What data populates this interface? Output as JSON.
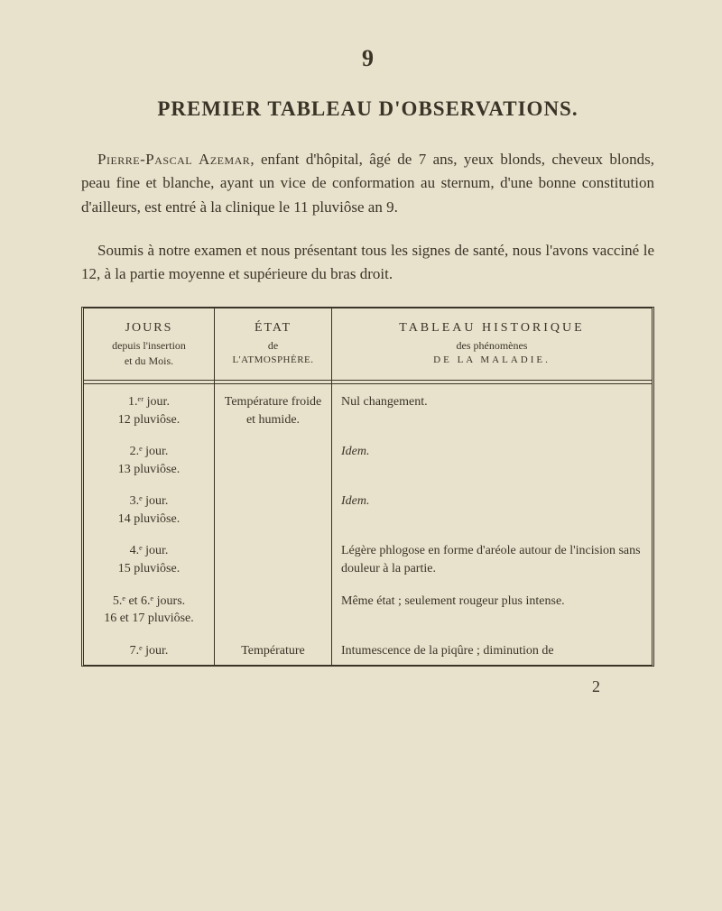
{
  "page_number": "9",
  "title": "PREMIER TABLEAU D'OBSERVATIONS.",
  "paragraph1_name": "Pierre-Pascal Azemar",
  "paragraph1_rest": ", enfant d'hôpital, âgé de 7 ans, yeux blonds, cheveux blonds, peau fine et blanche, ayant un vice de conformation au sternum, d'une bonne constitution d'ailleurs, est entré à la clinique le 11 pluviôse an 9.",
  "paragraph2": "Soumis à notre examen et nous présentant tous les signes de santé, nous l'avons vacciné le 12, à la partie moyenne et supérieure du bras droit.",
  "headers": {
    "col1_title": "JOURS",
    "col1_sub1": "depuis l'insertion",
    "col1_sub2": "et du Mois.",
    "col2_title": "ÉTAT",
    "col2_sub1": "de",
    "col2_sub2": "L'ATMOSPHÈRE.",
    "col3_title": "TABLEAU HISTORIQUE",
    "col3_sub1": "des phénomènes",
    "col3_sub2": "DE LA MALADIE."
  },
  "rows": [
    {
      "day": "1.ᵉʳ jour.",
      "date": "12 pluviôse.",
      "atm": "Température froide et humide.",
      "obs": "Nul changement."
    },
    {
      "day": "2.ᵉ jour.",
      "date": "13 pluviôse.",
      "atm": "",
      "obs": "Idem."
    },
    {
      "day": "3.ᵉ jour.",
      "date": "14 pluviôse.",
      "atm": "",
      "obs": "Idem."
    },
    {
      "day": "4.ᵉ jour.",
      "date": "15 pluviôse.",
      "atm": "",
      "obs": "Légère phlogose en forme d'aréole autour de l'incision sans douleur à la partie."
    },
    {
      "day": "5.ᵉ et 6.ᵉ jours.",
      "date": "16 et 17 pluviôse.",
      "atm": "",
      "obs": "Même état ; seulement rougeur plus intense."
    },
    {
      "day": "7.ᵉ jour.",
      "date": "",
      "atm": "Température",
      "obs": "Intumescence de la piqûre ; diminution de"
    }
  ],
  "signature": "2",
  "colors": {
    "bg": "#e8e2cc",
    "text": "#3a3428"
  },
  "typography": {
    "body_fontsize": 17,
    "title_fontsize": 23,
    "table_fontsize": 14
  }
}
